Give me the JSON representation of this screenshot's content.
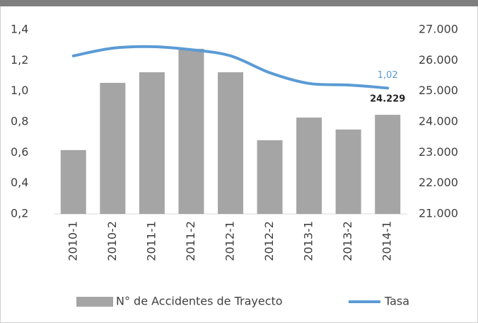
{
  "chart_data": {
    "type": "bar",
    "categories": [
      "2010-1",
      "2010-2",
      "2011-1",
      "2011-2",
      "2012-1",
      "2012-2",
      "2013-1",
      "2013-2",
      "2014-1"
    ],
    "series": [
      {
        "name": "N° de Accidentes de Trayecto",
        "type": "bar",
        "axis": "y2",
        "color": "#a5a5a5",
        "values": [
          23080,
          25270,
          25615,
          26380,
          25615,
          23400,
          24140,
          23750,
          24229
        ],
        "value_labels": [
          null,
          null,
          null,
          null,
          null,
          null,
          null,
          null,
          "24.229"
        ]
      },
      {
        "name": "Tasa",
        "type": "line",
        "color": "#5b9bd5",
        "values": [
          1.23,
          1.28,
          1.29,
          1.27,
          1.23,
          1.12,
          1.05,
          1.04,
          1.02
        ],
        "value_labels": [
          null,
          null,
          null,
          null,
          null,
          null,
          null,
          null,
          "1,02"
        ]
      }
    ],
    "ylim": [
      0.2,
      1.4
    ],
    "yticks": [
      {
        "value": 0.2,
        "label": "0,2"
      },
      {
        "value": 0.4,
        "label": "0,4"
      },
      {
        "value": 0.6,
        "label": "0,6"
      },
      {
        "value": 0.8,
        "label": "0,8"
      },
      {
        "value": 1.0,
        "label": "1,0"
      },
      {
        "value": 1.2,
        "label": "1,2"
      },
      {
        "value": 1.4,
        "label": "1,4"
      }
    ],
    "y2lim": [
      21000,
      27000
    ],
    "y2ticks": [
      {
        "value": 21000,
        "label": "21.000"
      },
      {
        "value": 22000,
        "label": "22.000"
      },
      {
        "value": 23000,
        "label": "23.000"
      },
      {
        "value": 24000,
        "label": "24.000"
      },
      {
        "value": 25000,
        "label": "25.000"
      },
      {
        "value": 26000,
        "label": "26.000"
      },
      {
        "value": 27000,
        "label": "27.000"
      }
    ],
    "grid": false,
    "legend": "bottom"
  }
}
